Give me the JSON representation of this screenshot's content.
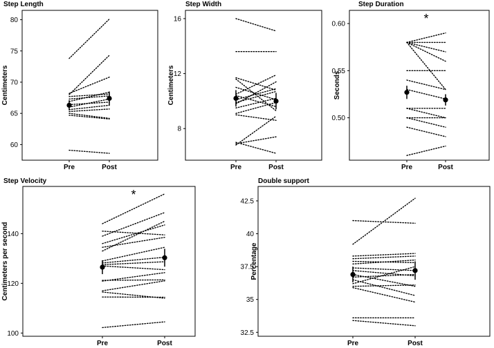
{
  "figure": {
    "panels": [
      {
        "id": "step-length",
        "title": "Step Length",
        "ylabel": "Centimeters",
        "xticks": [
          "Pre",
          "Post"
        ],
        "yticks": [
          60,
          65,
          70,
          75,
          80
        ],
        "ylim": [
          57.5,
          81.5
        ],
        "significance": "",
        "pairs": [
          [
            59.1,
            58.6
          ],
          [
            73.8,
            80.1
          ],
          [
            68.0,
            74.3
          ],
          [
            68.2,
            70.8
          ],
          [
            67.7,
            68.1
          ],
          [
            67.3,
            67.8
          ],
          [
            66.9,
            68.4
          ],
          [
            66.4,
            66.8
          ],
          [
            66.0,
            67.3
          ],
          [
            65.6,
            66.3
          ],
          [
            65.3,
            65.7
          ],
          [
            65.0,
            64.2
          ],
          [
            64.7,
            64.1
          ]
        ],
        "mean": [
          66.3,
          67.4
        ],
        "err": [
          0.8,
          1.1
        ]
      },
      {
        "id": "step-width",
        "title": "Step Width",
        "ylabel": "Centimeters",
        "xticks": [
          "Pre",
          "Post"
        ],
        "yticks": [
          8,
          12,
          16
        ],
        "ylim": [
          5.7,
          16.6
        ],
        "significance": "",
        "pairs": [
          [
            16.0,
            15.1
          ],
          [
            13.6,
            13.6
          ],
          [
            11.7,
            10.8
          ],
          [
            11.6,
            9.3
          ],
          [
            11.0,
            10.1
          ],
          [
            10.5,
            11.9
          ],
          [
            10.4,
            9.6
          ],
          [
            10.1,
            10.9
          ],
          [
            9.9,
            10.7
          ],
          [
            9.8,
            11.4
          ],
          [
            9.5,
            10.2
          ],
          [
            9.1,
            9.9
          ],
          [
            9.0,
            8.6
          ],
          [
            6.9,
            7.4
          ],
          [
            6.8,
            8.9
          ],
          [
            7.0,
            6.2
          ]
        ],
        "mean": [
          10.2,
          10.0
        ],
        "err": [
          0.6,
          0.6
        ]
      },
      {
        "id": "step-duration",
        "title": "Step Duration",
        "ylabel": "Seconds",
        "xticks": [
          "Pre",
          "Post"
        ],
        "yticks": [
          0.5,
          0.55,
          0.6
        ],
        "ylim": [
          0.455,
          0.614
        ],
        "significance": "*",
        "pairs": [
          [
            0.58,
            0.59
          ],
          [
            0.58,
            0.58
          ],
          [
            0.58,
            0.57
          ],
          [
            0.58,
            0.56
          ],
          [
            0.58,
            0.53
          ],
          [
            0.55,
            0.55
          ],
          [
            0.54,
            0.53
          ],
          [
            0.53,
            0.52
          ],
          [
            0.51,
            0.51
          ],
          [
            0.51,
            0.5
          ],
          [
            0.5,
            0.5
          ],
          [
            0.5,
            0.49
          ],
          [
            0.49,
            0.48
          ],
          [
            0.46,
            0.47
          ]
        ],
        "mean": [
          0.527,
          0.519
        ],
        "err": [
          0.007,
          0.006
        ]
      },
      {
        "id": "step-velocity",
        "title": "Step Velocity",
        "ylabel": "Centimeters per second",
        "xticks": [
          "Pre",
          "Post"
        ],
        "yticks": [
          100,
          120,
          140
        ],
        "ylim": [
          98.7,
          159.0
        ],
        "significance": "*",
        "pairs": [
          [
            144.0,
            156.0
          ],
          [
            141.0,
            139.5
          ],
          [
            139.0,
            148.5
          ],
          [
            136.0,
            143.5
          ],
          [
            134.5,
            138.5
          ],
          [
            133.0,
            145.0
          ],
          [
            129.0,
            134.5
          ],
          [
            128.2,
            130.5
          ],
          [
            127.5,
            128.7
          ],
          [
            127.0,
            125.5
          ],
          [
            121.2,
            121.4
          ],
          [
            120.9,
            124.3
          ],
          [
            117.0,
            121.0
          ],
          [
            116.5,
            114.0
          ],
          [
            114.5,
            114.4
          ],
          [
            102.2,
            104.5
          ]
        ],
        "mean": [
          126.5,
          130.3
        ],
        "err": [
          2.8,
          3.6
        ]
      },
      {
        "id": "double-support",
        "title": "Double support",
        "ylabel": "Percentage",
        "xticks": [
          "Pre",
          "Post"
        ],
        "yticks": [
          32.5,
          35.0,
          37.5,
          40.0,
          42.5
        ],
        "ylim": [
          32.2,
          43.6
        ],
        "significance": "",
        "pairs": [
          [
            41.0,
            40.8
          ],
          [
            39.2,
            42.7
          ],
          [
            38.3,
            38.5
          ],
          [
            38.1,
            38.3
          ],
          [
            37.9,
            37.8
          ],
          [
            37.7,
            38.0
          ],
          [
            37.4,
            37.2
          ],
          [
            37.2,
            36.8
          ],
          [
            36.9,
            36.0
          ],
          [
            36.7,
            36.9
          ],
          [
            36.5,
            35.3
          ],
          [
            36.2,
            37.5
          ],
          [
            36.0,
            36.1
          ],
          [
            35.9,
            34.8
          ],
          [
            33.6,
            33.6
          ],
          [
            33.4,
            33.0
          ]
        ],
        "mean": [
          36.9,
          37.2
        ],
        "err": [
          0.6,
          0.7
        ]
      }
    ]
  },
  "chart_data": [
    {
      "type": "line",
      "title": "Step Length",
      "xlabel": "",
      "ylabel": "Centimeters",
      "categories": [
        "Pre",
        "Post"
      ],
      "ylim": [
        57.5,
        81.5
      ],
      "series": [
        {
          "name": "participants",
          "values": [
            [
              59.1,
              58.6
            ],
            [
              73.8,
              80.1
            ],
            [
              68.0,
              74.3
            ],
            [
              68.2,
              70.8
            ],
            [
              67.7,
              68.1
            ],
            [
              67.3,
              67.8
            ],
            [
              66.9,
              68.4
            ],
            [
              66.4,
              66.8
            ],
            [
              66.0,
              67.3
            ],
            [
              65.6,
              66.3
            ],
            [
              65.3,
              65.7
            ],
            [
              65.0,
              64.2
            ],
            [
              64.7,
              64.1
            ]
          ]
        },
        {
          "name": "mean",
          "values": [
            66.3,
            67.4
          ],
          "error": [
            0.8,
            1.1
          ]
        }
      ],
      "annotations": []
    },
    {
      "type": "line",
      "title": "Step Width",
      "xlabel": "",
      "ylabel": "Centimeters",
      "categories": [
        "Pre",
        "Post"
      ],
      "ylim": [
        5.7,
        16.6
      ],
      "series": [
        {
          "name": "mean",
          "values": [
            10.2,
            10.0
          ],
          "error": [
            0.6,
            0.6
          ]
        }
      ],
      "annotations": []
    },
    {
      "type": "line",
      "title": "Step Duration",
      "xlabel": "",
      "ylabel": "Seconds",
      "categories": [
        "Pre",
        "Post"
      ],
      "ylim": [
        0.455,
        0.614
      ],
      "series": [
        {
          "name": "mean",
          "values": [
            0.527,
            0.519
          ],
          "error": [
            0.007,
            0.006
          ]
        }
      ],
      "annotations": [
        "*"
      ]
    },
    {
      "type": "line",
      "title": "Step Velocity",
      "xlabel": "",
      "ylabel": "Centimeters per second",
      "categories": [
        "Pre",
        "Post"
      ],
      "ylim": [
        98.7,
        159.0
      ],
      "series": [
        {
          "name": "mean",
          "values": [
            126.5,
            130.3
          ],
          "error": [
            2.8,
            3.6
          ]
        }
      ],
      "annotations": [
        "*"
      ]
    },
    {
      "type": "line",
      "title": "Double support",
      "xlabel": "",
      "ylabel": "Percentage",
      "categories": [
        "Pre",
        "Post"
      ],
      "ylim": [
        32.2,
        43.6
      ],
      "series": [
        {
          "name": "mean",
          "values": [
            36.9,
            37.2
          ],
          "error": [
            0.6,
            0.7
          ]
        }
      ],
      "annotations": []
    }
  ]
}
